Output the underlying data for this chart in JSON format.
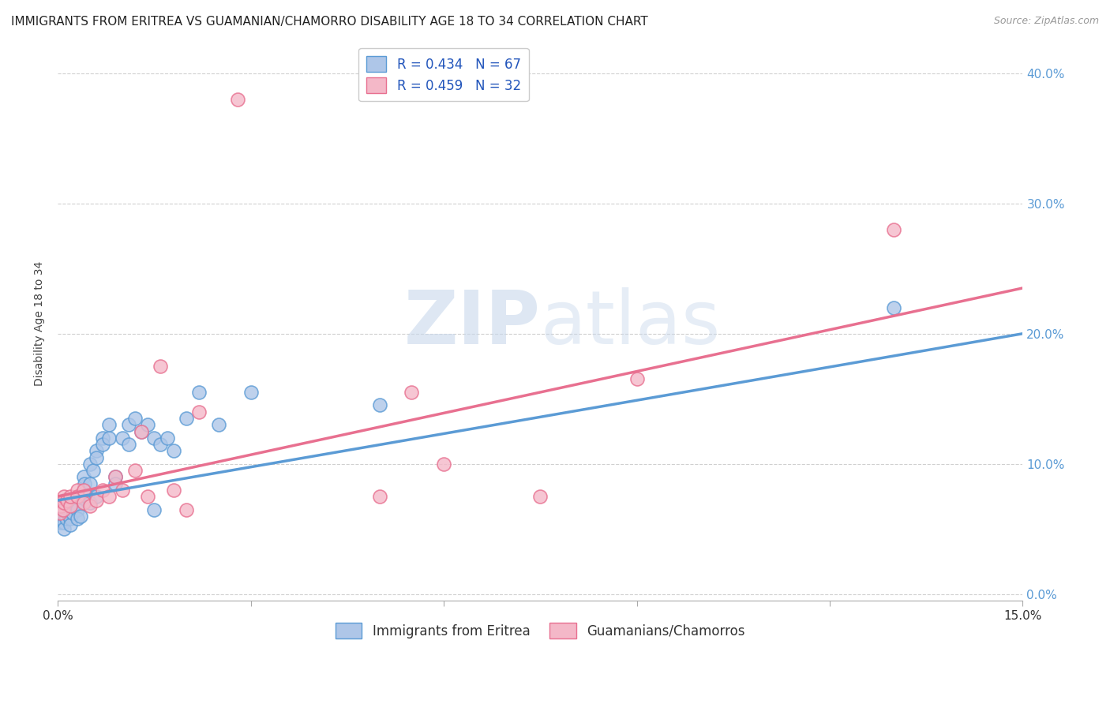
{
  "title": "IMMIGRANTS FROM ERITREA VS GUAMANIAN/CHAMORRO DISABILITY AGE 18 TO 34 CORRELATION CHART",
  "source": "Source: ZipAtlas.com",
  "ylabel": "Disability Age 18 to 34",
  "xlim": [
    0.0,
    0.15
  ],
  "ylim": [
    -0.005,
    0.42
  ],
  "xticks_shown": [
    0.0,
    0.15
  ],
  "yticks": [
    0.0,
    0.1,
    0.2,
    0.3,
    0.4
  ],
  "watermark_zip": "ZIP",
  "watermark_atlas": "atlas",
  "blue_scatter_x": [
    0.0002,
    0.0003,
    0.0004,
    0.0005,
    0.0006,
    0.0007,
    0.0008,
    0.0009,
    0.001,
    0.001,
    0.001,
    0.001,
    0.001,
    0.0012,
    0.0013,
    0.0014,
    0.0015,
    0.0016,
    0.0017,
    0.0018,
    0.002,
    0.002,
    0.002,
    0.002,
    0.0022,
    0.0023,
    0.0025,
    0.003,
    0.003,
    0.003,
    0.003,
    0.0032,
    0.0035,
    0.004,
    0.004,
    0.0042,
    0.0045,
    0.005,
    0.005,
    0.005,
    0.0055,
    0.006,
    0.006,
    0.006,
    0.007,
    0.007,
    0.008,
    0.008,
    0.009,
    0.009,
    0.01,
    0.011,
    0.011,
    0.012,
    0.013,
    0.014,
    0.015,
    0.015,
    0.016,
    0.017,
    0.018,
    0.02,
    0.022,
    0.025,
    0.03,
    0.05,
    0.13
  ],
  "blue_scatter_y": [
    0.06,
    0.055,
    0.063,
    0.058,
    0.065,
    0.07,
    0.06,
    0.055,
    0.07,
    0.072,
    0.065,
    0.055,
    0.05,
    0.06,
    0.058,
    0.068,
    0.062,
    0.065,
    0.07,
    0.06,
    0.063,
    0.068,
    0.058,
    0.053,
    0.07,
    0.062,
    0.072,
    0.072,
    0.068,
    0.065,
    0.058,
    0.075,
    0.06,
    0.09,
    0.08,
    0.085,
    0.075,
    0.1,
    0.085,
    0.07,
    0.095,
    0.11,
    0.105,
    0.075,
    0.12,
    0.115,
    0.12,
    0.13,
    0.09,
    0.085,
    0.12,
    0.13,
    0.115,
    0.135,
    0.125,
    0.13,
    0.12,
    0.065,
    0.115,
    0.12,
    0.11,
    0.135,
    0.155,
    0.13,
    0.155,
    0.145,
    0.22
  ],
  "pink_scatter_x": [
    0.0003,
    0.0005,
    0.0008,
    0.001,
    0.001,
    0.0015,
    0.002,
    0.002,
    0.003,
    0.003,
    0.004,
    0.004,
    0.005,
    0.006,
    0.007,
    0.008,
    0.009,
    0.01,
    0.012,
    0.013,
    0.014,
    0.016,
    0.018,
    0.02,
    0.022,
    0.028,
    0.05,
    0.055,
    0.06,
    0.075,
    0.09,
    0.13
  ],
  "pink_scatter_y": [
    0.062,
    0.068,
    0.065,
    0.07,
    0.075,
    0.072,
    0.068,
    0.075,
    0.08,
    0.075,
    0.08,
    0.07,
    0.068,
    0.072,
    0.08,
    0.075,
    0.09,
    0.08,
    0.095,
    0.125,
    0.075,
    0.175,
    0.08,
    0.065,
    0.14,
    0.38,
    0.075,
    0.155,
    0.1,
    0.075,
    0.165,
    0.28
  ],
  "blue_line_x": [
    0.0,
    0.15
  ],
  "blue_line_y": [
    0.072,
    0.2
  ],
  "pink_line_x": [
    0.0,
    0.15
  ],
  "pink_line_y": [
    0.075,
    0.235
  ],
  "blue_color": "#5b9bd5",
  "pink_color": "#e87090",
  "blue_fill": "#aec6e8",
  "pink_fill": "#f4b8c8",
  "grid_color": "#d0d0d0",
  "title_fontsize": 11,
  "axis_label_fontsize": 10,
  "tick_fontsize": 11,
  "legend_fontsize": 12,
  "right_tick_color": "#5b9bd5"
}
